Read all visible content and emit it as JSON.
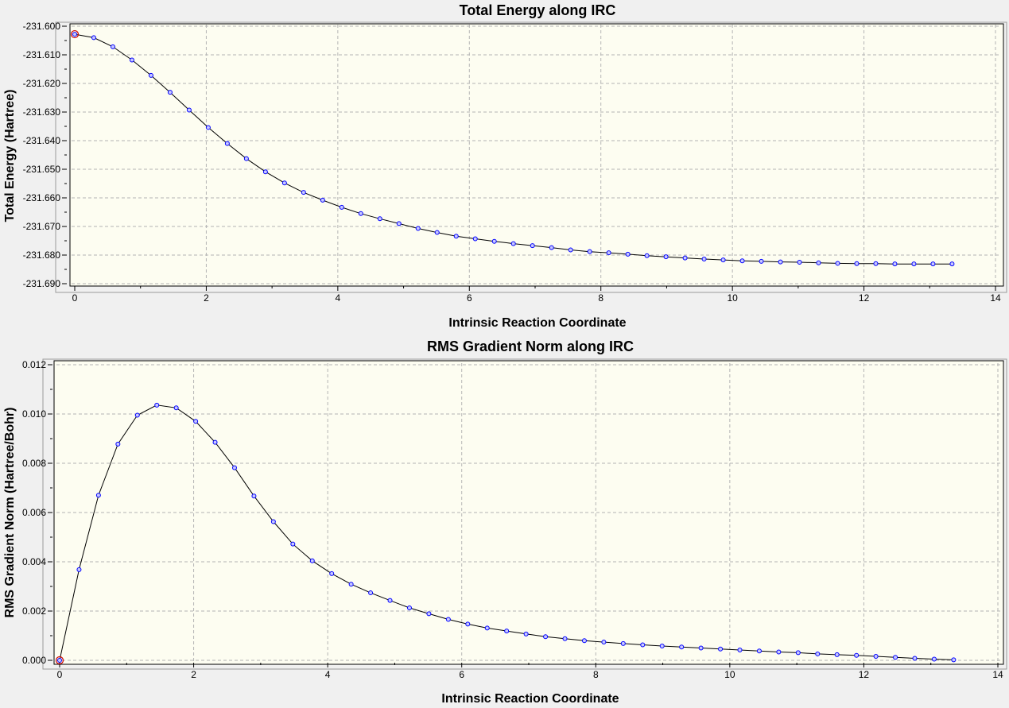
{
  "chart_data": [
    {
      "type": "line",
      "title": "Total Energy along IRC",
      "xlabel": "Intrinsic Reaction Coordinate",
      "ylabel": "Total Energy (Hartree)",
      "xlim": [
        0,
        14
      ],
      "ylim": [
        -231.69,
        -231.6
      ],
      "x_ticks": [
        "0",
        "2",
        "4",
        "6",
        "8",
        "10",
        "12",
        "14"
      ],
      "x_tick_values": [
        0,
        2,
        4,
        6,
        8,
        10,
        12,
        14
      ],
      "y_ticks": [
        "-231.600",
        "-231.610",
        "-231.620",
        "-231.630",
        "-231.640",
        "-231.650",
        "-231.660",
        "-231.670",
        "-231.680",
        "-231.690"
      ],
      "y_tick_values": [
        -231.6,
        -231.61,
        -231.62,
        -231.63,
        -231.64,
        -231.65,
        -231.66,
        -231.67,
        -231.68,
        -231.69
      ],
      "grid": true,
      "line_color": "#000000",
      "marker_color": "#0000ff",
      "highlight_color": "#cc0000",
      "highlight_index": 0,
      "series": [
        {
          "x": [
            0,
            0.29,
            0.58,
            0.87,
            1.16,
            1.45,
            1.74,
            2.03,
            2.32,
            2.61,
            2.9,
            3.19,
            3.48,
            3.77,
            4.06,
            4.35,
            4.64,
            4.93,
            5.22,
            5.51,
            5.8,
            6.09,
            6.38,
            6.67,
            6.96,
            7.25,
            7.54,
            7.83,
            8.12,
            8.41,
            8.7,
            8.99,
            9.28,
            9.57,
            9.86,
            10.15,
            10.44,
            10.73,
            11.02,
            11.31,
            11.6,
            11.89,
            12.18,
            12.47,
            12.76,
            13.05,
            13.34
          ],
          "y": [
            -231.6028,
            -231.604,
            -231.6072,
            -231.6118,
            -231.6172,
            -231.6231,
            -231.6293,
            -231.6354,
            -231.641,
            -231.6463,
            -231.6509,
            -231.6548,
            -231.6581,
            -231.6608,
            -231.6633,
            -231.6655,
            -231.6673,
            -231.669,
            -231.6707,
            -231.6721,
            -231.6734,
            -231.6743,
            -231.6752,
            -231.676,
            -231.6767,
            -231.6774,
            -231.6782,
            -231.6788,
            -231.6792,
            -231.6797,
            -231.6802,
            -231.6806,
            -231.681,
            -231.6814,
            -231.6817,
            -231.682,
            -231.6822,
            -231.6824,
            -231.6825,
            -231.6827,
            -231.6829,
            -231.683,
            -231.683,
            -231.6831,
            -231.6831,
            -231.6831,
            -231.6831
          ]
        }
      ]
    },
    {
      "type": "line",
      "title": "RMS Gradient Norm along IRC",
      "xlabel": "Intrinsic Reaction Coordinate",
      "ylabel": "RMS Gradient Norm (Hartree/Bohr)",
      "xlim": [
        0,
        14
      ],
      "ylim": [
        0,
        0.012
      ],
      "x_ticks": [
        "0",
        "2",
        "4",
        "6",
        "8",
        "10",
        "12",
        "14"
      ],
      "x_tick_values": [
        0,
        2,
        4,
        6,
        8,
        10,
        12,
        14
      ],
      "y_ticks": [
        "0.000",
        "0.002",
        "0.004",
        "0.006",
        "0.008",
        "0.010",
        "0.012"
      ],
      "y_tick_values": [
        0,
        0.002,
        0.004,
        0.006,
        0.008,
        0.01,
        0.012
      ],
      "grid": true,
      "line_color": "#000000",
      "marker_color": "#0000ff",
      "highlight_color": "#cc0000",
      "highlight_index": 0,
      "series": [
        {
          "x": [
            0,
            0.29,
            0.58,
            0.87,
            1.16,
            1.45,
            1.74,
            2.03,
            2.32,
            2.61,
            2.9,
            3.19,
            3.48,
            3.77,
            4.06,
            4.35,
            4.64,
            4.93,
            5.22,
            5.51,
            5.8,
            6.09,
            6.38,
            6.67,
            6.96,
            7.25,
            7.54,
            7.83,
            8.12,
            8.41,
            8.7,
            8.99,
            9.28,
            9.57,
            9.86,
            10.15,
            10.44,
            10.73,
            11.02,
            11.31,
            11.6,
            11.89,
            12.18,
            12.47,
            12.76,
            13.05,
            13.34
          ],
          "y": [
            0.0,
            0.00368,
            0.0067,
            0.00878,
            0.00995,
            0.01036,
            0.01025,
            0.0097,
            0.00885,
            0.00782,
            0.00667,
            0.00563,
            0.00472,
            0.00404,
            0.00352,
            0.00309,
            0.00274,
            0.00243,
            0.00213,
            0.00189,
            0.00166,
            0.00147,
            0.00131,
            0.00119,
            0.00107,
            0.00096,
            0.00088,
            0.0008,
            0.00074,
            0.00068,
            0.00063,
            0.00058,
            0.00054,
            0.0005,
            0.00046,
            0.00042,
            0.00038,
            0.00034,
            0.00031,
            0.00026,
            0.00023,
            0.0002,
            0.00016,
            0.00012,
            8e-05,
            5e-05,
            2e-05
          ]
        }
      ]
    }
  ]
}
